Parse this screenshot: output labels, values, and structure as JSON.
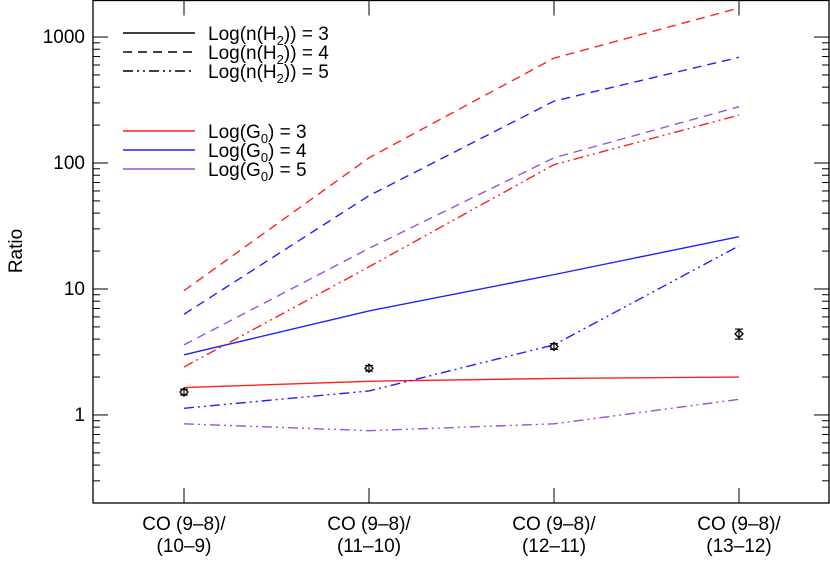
{
  "chart_data": {
    "type": "line",
    "title": "",
    "xlabel": "",
    "ylabel": "Ratio",
    "yscale": "log",
    "ylim": [
      0.2,
      1950
    ],
    "yticks": [
      1,
      10,
      100,
      1000
    ],
    "ytick_labels": [
      "1",
      "10",
      "100",
      "1000"
    ],
    "grid": false,
    "legend_placement": "top-left",
    "categories": [
      [
        "CO (9–8)/",
        "(10–9)"
      ],
      [
        "CO (9–8)/",
        "(11–10)"
      ],
      [
        "CO (9–8)/",
        "(12–11)"
      ],
      [
        "CO (9–8)/",
        "(13–12)"
      ]
    ],
    "legend_density": [
      {
        "label": "Log(n(H₂)) = 3",
        "base": "Log(n(H",
        "sub": "2",
        "tail": ")) = 3",
        "style": "solid"
      },
      {
        "label": "Log(n(H₂)) = 4",
        "base": "Log(n(H",
        "sub": "2",
        "tail": ")) = 4",
        "style": "dashed"
      },
      {
        "label": "Log(n(H₂)) = 5",
        "base": "Log(n(H",
        "sub": "2",
        "tail": ")) = 5",
        "style": "dash-dot-dot"
      }
    ],
    "legend_field": [
      {
        "label": "Log(G₀) = 3",
        "base": "Log(G",
        "sub": "0",
        "tail": ") = 3",
        "color": "#ff2020"
      },
      {
        "label": "Log(G₀) = 4",
        "base": "Log(G",
        "sub": "0",
        "tail": ") = 4",
        "color": "#2020ff"
      },
      {
        "label": "Log(G₀) = 5",
        "base": "Log(G",
        "sub": "0",
        "tail": ") = 5",
        "color": "#9d50d8"
      }
    ],
    "series": [
      {
        "logG0": 3,
        "logn": 3,
        "style": "solid",
        "color": "#ff2020",
        "values": [
          1.65,
          1.85,
          1.95,
          2.0
        ]
      },
      {
        "logG0": 4,
        "logn": 3,
        "style": "solid",
        "color": "#2020ff",
        "values": [
          3.0,
          6.7,
          13,
          26
        ]
      },
      {
        "logG0": 3,
        "logn": 4,
        "style": "dashed",
        "color": "#ff2020",
        "values": [
          9.7,
          110,
          680,
          1700
        ]
      },
      {
        "logG0": 4,
        "logn": 4,
        "style": "dashed",
        "color": "#2020ff",
        "values": [
          6.3,
          55,
          310,
          690
        ]
      },
      {
        "logG0": 5,
        "logn": 4,
        "style": "dashed",
        "color": "#9d50d8",
        "values": [
          3.6,
          21,
          110,
          280
        ]
      },
      {
        "logG0": 3,
        "logn": 5,
        "style": "dash-dot-dot",
        "color": "#ff2020",
        "values": [
          2.4,
          15,
          97,
          240
        ]
      },
      {
        "logG0": 4,
        "logn": 5,
        "style": "dash-dot-dot",
        "color": "#2020ff",
        "values": [
          1.13,
          1.55,
          3.6,
          22
        ]
      },
      {
        "logG0": 5,
        "logn": 5,
        "style": "dash-dot-dot",
        "color": "#9d50d8",
        "values": [
          0.85,
          0.75,
          0.85,
          1.33
        ]
      }
    ],
    "observed": {
      "values": [
        1.52,
        2.35,
        3.5,
        4.4
      ],
      "errors": [
        0.08,
        0.12,
        0.18,
        0.4
      ]
    }
  }
}
